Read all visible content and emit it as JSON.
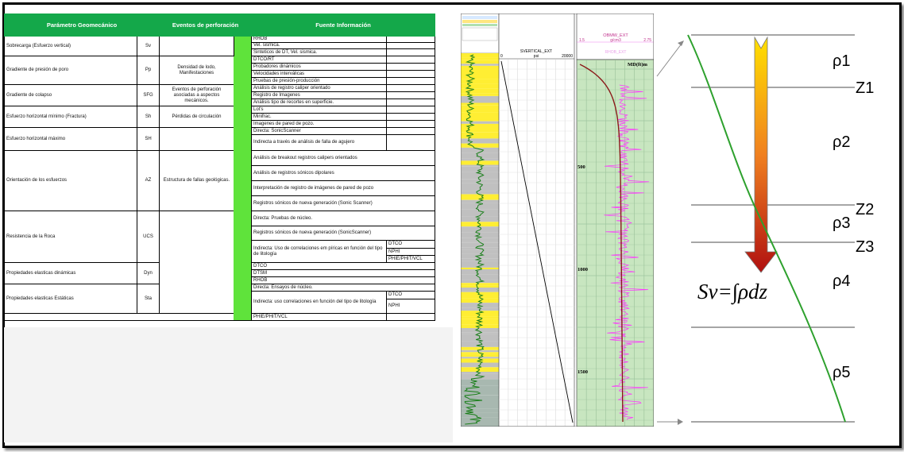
{
  "table": {
    "headers": [
      "Parámetro Geomecánico",
      "Eventos de perforación",
      "Fuente Información"
    ],
    "rows": [
      {
        "param": "Sobrecarga (Esfuerzo vertical)",
        "sym": "Sv",
        "event": "",
        "sources": [
          "RHOB",
          "Vel. sismica.",
          "Sinteticos de DT, Vel. sismica."
        ]
      },
      {
        "param": "Gradiente de presión de poro",
        "sym": "Pp",
        "event": "Densidad de lodo, Manifestaciones",
        "sources": [
          "DTCO/RT",
          "Probadores dinámicos",
          "Velocidades interválicas",
          "Pruebas de presión-producción"
        ]
      },
      {
        "param": "Gradiente de colapso",
        "sym": "SFG",
        "event": "Eventos de perforación asociadas a aspectos mecánicos.",
        "sources": [
          "Análisis de registro caliper orientado",
          "Registro de Imagenes",
          "Análisis tipo de recortes en superficie."
        ]
      },
      {
        "param": "Esfuerzo horizontal mínimo (Fractura)",
        "sym": "Sh",
        "event": "Pérdidas de circulación",
        "sources": [
          "Lot's",
          "Minifrac.",
          "Imagenes de pared de pozo."
        ]
      },
      {
        "param": "Esfuerzo horizontal máximo",
        "sym": "SH",
        "event": "",
        "sources": [
          "Directa: SonicScanner",
          "Indirecta a través de análisis de falla de agujero"
        ]
      },
      {
        "param": "Orientación de los esfuerzos",
        "sym": "AZ",
        "event": "Estructura de fallas geológicas.",
        "sources": [
          "Análisis de breakout registros calipers orientados",
          "Análisis de registros sónicos dipolares",
          "Interpretación de registro de imágenes de pared de pozo",
          "Registros sónicos de nueva generación (Sonic Scanner)"
        ]
      },
      {
        "param": "Resistencia de la Roca",
        "sym": "UCS",
        "event": "",
        "sources": [
          "Directa: Pruebas de núcleo.",
          "Registros sónicos de nueva generación (SonicScanner)",
          "Indirecta: Uso de correlaciones em píricas en función del tipo de litología"
        ],
        "subs": [
          "DTCO",
          "NPHI",
          "PHIE/PHIT/VCL"
        ]
      },
      {
        "param": "Propiedades elasticas dinámicas",
        "sym": "Dyn",
        "event": "",
        "sources": [
          "DTCO",
          "DTSM",
          "RHOB"
        ]
      },
      {
        "param": "Propiedades elasticas Estáticas",
        "sym": "Sta",
        "event": "",
        "sources": [
          "Directa: Ensayos de núcleo.",
          "Indirecta: uso correlaciones en función del tipo de litología"
        ],
        "subs": [
          "DTCO",
          "NPHI",
          "PHIE/PHIT/VCL"
        ]
      }
    ]
  },
  "log": {
    "track2_title": "SVERTICAL_EXT",
    "track2_unit": "psi",
    "track2_min": "0",
    "track2_max": "20000",
    "track3_title": "OBMW_EXT",
    "track3_unit": "g/cm3",
    "track3_min": "1.5",
    "track3_max": "2.75",
    "track3_sub": "RHOB_EXT",
    "depth_header": "MD(ft)m",
    "depths": [
      "500",
      "1000",
      "1500"
    ],
    "colors": {
      "sand": "#ffee33",
      "shale": "#c0c0c0",
      "gr": "#1a7f1a",
      "track_bg": "#c8e6c0",
      "rhob": "#ff33ff",
      "obmw": "#8b1a1a"
    }
  },
  "diagram": {
    "rho": [
      "ρ1",
      "ρ2",
      "ρ3",
      "ρ4",
      "ρ5"
    ],
    "z": [
      "Z1",
      "Z2",
      "Z3"
    ],
    "formula": "Sv=∫ρdz",
    "colors": {
      "curve": "#2ea12e",
      "arrow_top": "#ffe000",
      "arrow_bottom": "#b01010"
    }
  }
}
